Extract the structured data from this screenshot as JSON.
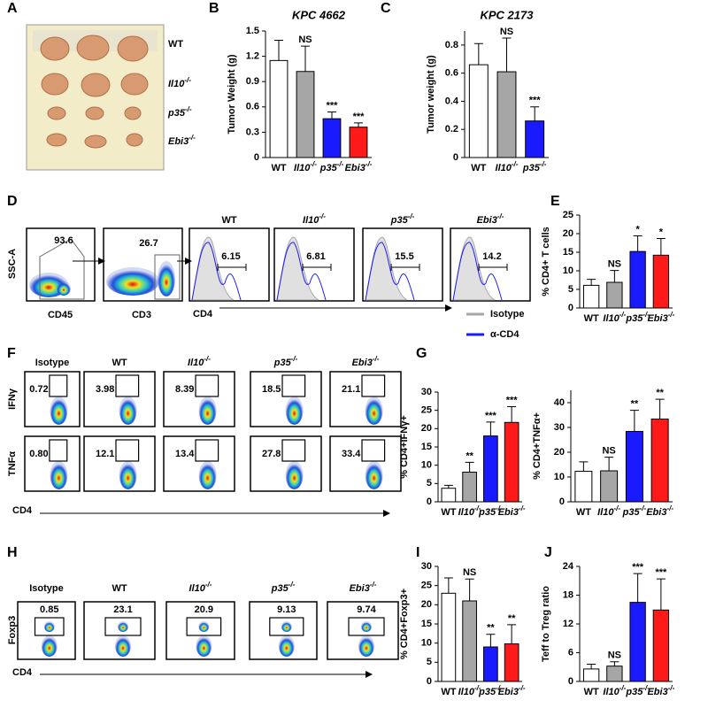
{
  "panels": [
    "A",
    "B",
    "C",
    "D",
    "E",
    "F",
    "G",
    "H",
    "I",
    "J"
  ],
  "photo_labels": [
    "WT",
    "Il10-/-",
    "p35-/-",
    "Ebi3-/-"
  ],
  "flow_d": {
    "ylabel": "SSC-A",
    "gates": [
      {
        "x": "CD45",
        "value": "93.6"
      },
      {
        "x": "CD3",
        "value": "26.7"
      }
    ],
    "hist_x": "CD4",
    "hists": [
      {
        "name": "WT",
        "value": "6.15"
      },
      {
        "name": "Il10-/-",
        "value": "6.81"
      },
      {
        "name": "p35-/-",
        "value": "15.5"
      },
      {
        "name": "Ebi3-/-",
        "value": "14.2"
      }
    ],
    "legend": [
      {
        "name": "Isotype",
        "color": "#a6a6a6"
      },
      {
        "name": "α-CD4",
        "color": "#1a1aff"
      }
    ]
  },
  "flow_f": {
    "columns": [
      "Isotype",
      "WT",
      "Il10-/-",
      "p35-/-",
      "Ebi3-/-"
    ],
    "rows": [
      {
        "name": "IFNγ",
        "values": [
          "0.72",
          "3.98",
          "8.39",
          "18.5",
          "21.1"
        ]
      },
      {
        "name": "TNFα",
        "values": [
          "0.80",
          "12.1",
          "13.4",
          "27.8",
          "33.4"
        ]
      }
    ],
    "x": "CD4"
  },
  "flow_h": {
    "columns": [
      "Isotype",
      "WT",
      "Il10-/-",
      "p35-/-",
      "Ebi3-/-"
    ],
    "ylabel": "Foxp3",
    "values": [
      "0.85",
      "23.1",
      "20.9",
      "9.13",
      "9.74"
    ],
    "x": "CD4"
  },
  "chart_data": [
    {
      "type": "bar",
      "title": "KPC 4662",
      "ylabel": "Tumor Weight (g)",
      "categories": [
        "WT",
        "Il10-/-",
        "p35-/-",
        "Ebi3-/-"
      ],
      "values": [
        1.15,
        1.02,
        0.46,
        0.36
      ],
      "errors": [
        0.24,
        0.3,
        0.08,
        0.05
      ],
      "colors": [
        "#ffffff",
        "#a6a6a6",
        "#1a1aff",
        "#ff1a1a"
      ],
      "annotations": [
        null,
        "NS",
        "***",
        "***"
      ],
      "ylim": [
        0,
        1.5
      ],
      "yticks": [
        0,
        0.3,
        0.6,
        0.9,
        1.2,
        1.5
      ]
    },
    {
      "type": "bar",
      "title": "KPC 2173",
      "ylabel": "Tumor weight (g)",
      "categories": [
        "WT",
        "Il10-/-",
        "p35-/-"
      ],
      "values": [
        0.66,
        0.61,
        0.26
      ],
      "errors": [
        0.15,
        0.24,
        0.1
      ],
      "colors": [
        "#ffffff",
        "#a6a6a6",
        "#1a1aff"
      ],
      "annotations": [
        null,
        "NS",
        "***"
      ],
      "ylim": [
        0,
        0.9
      ],
      "yticks": [
        0,
        0.2,
        0.4,
        0.6,
        0.8
      ]
    },
    {
      "type": "bar",
      "ylabel": "% CD4+ T cells",
      "categories": [
        "WT",
        "Il10-/-",
        "p35-/-",
        "Ebi3-/-"
      ],
      "values": [
        6.1,
        6.9,
        15.2,
        14.2
      ],
      "errors": [
        1.6,
        3.2,
        4.2,
        4.5
      ],
      "colors": [
        "#ffffff",
        "#a6a6a6",
        "#1a1aff",
        "#ff1a1a"
      ],
      "annotations": [
        null,
        "NS",
        "*",
        "*"
      ],
      "ylim": [
        0,
        25
      ],
      "yticks": [
        0,
        5,
        10,
        15,
        20,
        25
      ]
    },
    {
      "type": "bar",
      "ylabel": "% CD4+IFNγ+",
      "categories": [
        "WT",
        "Il10-/-",
        "p35-/-",
        "Ebi3-/-"
      ],
      "values": [
        3.7,
        8.1,
        18,
        21.7
      ],
      "errors": [
        0.8,
        2.7,
        3.8,
        4.3
      ],
      "colors": [
        "#ffffff",
        "#a6a6a6",
        "#1a1aff",
        "#ff1a1a"
      ],
      "annotations": [
        null,
        "**",
        "***",
        "***"
      ],
      "ylim": [
        0,
        30
      ],
      "yticks": [
        0,
        5,
        10,
        15,
        20,
        25,
        30
      ]
    },
    {
      "type": "bar",
      "ylabel": "% CD4+TNFα+",
      "categories": [
        "WT",
        "Il10-/-",
        "p35-/-",
        "Ebi3-/-"
      ],
      "values": [
        12.3,
        12.5,
        28.4,
        33.4
      ],
      "errors": [
        3.8,
        5.5,
        8.5,
        8
      ],
      "colors": [
        "#ffffff",
        "#a6a6a6",
        "#1a1aff",
        "#ff1a1a"
      ],
      "annotations": [
        null,
        "NS",
        "**",
        "**"
      ],
      "ylim": [
        0,
        45
      ],
      "yticks": [
        0,
        10,
        20,
        30,
        40
      ]
    },
    {
      "type": "bar",
      "ylabel": "% CD4+Foxp3+",
      "categories": [
        "WT",
        "Il10-/-",
        "p35-/-",
        "Ebi3-/-"
      ],
      "values": [
        23,
        21,
        9,
        9.8
      ],
      "errors": [
        4,
        5.7,
        3.3,
        5
      ],
      "colors": [
        "#ffffff",
        "#a6a6a6",
        "#1a1aff",
        "#ff1a1a"
      ],
      "annotations": [
        null,
        "NS",
        "**",
        "**"
      ],
      "ylim": [
        0,
        30
      ],
      "yticks": [
        0,
        5,
        10,
        15,
        20,
        25,
        30
      ]
    },
    {
      "type": "bar",
      "ylabel": "Teff to Treg ratio",
      "categories": [
        "WT",
        "Il10-/-",
        "p35-/-",
        "Ebi3-/-"
      ],
      "values": [
        2.6,
        3.2,
        16.5,
        14.9
      ],
      "errors": [
        1,
        0.9,
        6,
        6.5
      ],
      "colors": [
        "#ffffff",
        "#a6a6a6",
        "#1a1aff",
        "#ff1a1a"
      ],
      "annotations": [
        null,
        "NS",
        "***",
        "***"
      ],
      "ylim": [
        0,
        24
      ],
      "yticks": [
        0,
        6,
        12,
        18,
        24
      ]
    }
  ]
}
